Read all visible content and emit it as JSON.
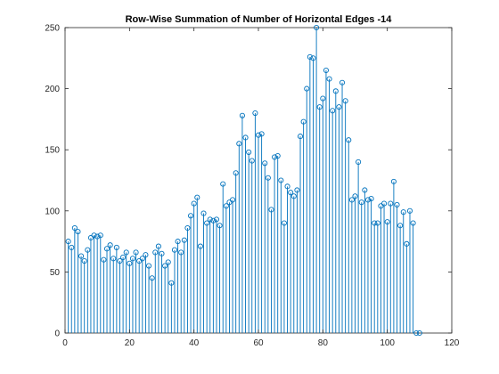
{
  "chart_data": {
    "type": "stem",
    "title": "Row-Wise Summation of Number of Horizontal Edges -14",
    "xlabel": "",
    "ylabel": "",
    "xlim": [
      0,
      120
    ],
    "ylim": [
      0,
      250
    ],
    "xticks": [
      0,
      20,
      40,
      60,
      80,
      100,
      120
    ],
    "yticks": [
      0,
      50,
      100,
      150,
      200,
      250
    ],
    "grid": false,
    "marker": "circle-open",
    "color": "#0072BD",
    "x": [
      1,
      2,
      3,
      4,
      5,
      6,
      7,
      8,
      9,
      10,
      11,
      12,
      13,
      14,
      15,
      16,
      17,
      18,
      19,
      20,
      21,
      22,
      23,
      24,
      25,
      26,
      27,
      28,
      29,
      30,
      31,
      32,
      33,
      34,
      35,
      36,
      37,
      38,
      39,
      40,
      41,
      42,
      43,
      44,
      45,
      46,
      47,
      48,
      49,
      50,
      51,
      52,
      53,
      54,
      55,
      56,
      57,
      58,
      59,
      60,
      61,
      62,
      63,
      64,
      65,
      66,
      67,
      68,
      69,
      70,
      71,
      72,
      73,
      74,
      75,
      76,
      77,
      78,
      79,
      80,
      81,
      82,
      83,
      84,
      85,
      86,
      87,
      88,
      89,
      90,
      91,
      92,
      93,
      94,
      95,
      96,
      97,
      98,
      99,
      100,
      101,
      102,
      103,
      104,
      105,
      106,
      107,
      108,
      109,
      110
    ],
    "values": [
      75,
      70,
      86,
      83,
      63,
      59,
      68,
      78,
      80,
      79,
      80,
      60,
      69,
      72,
      61,
      70,
      59,
      62,
      66,
      57,
      61,
      66,
      59,
      61,
      64,
      55,
      45,
      66,
      71,
      65,
      55,
      58,
      41,
      68,
      75,
      66,
      76,
      86,
      96,
      106,
      111,
      71,
      98,
      90,
      93,
      92,
      93,
      88,
      122,
      104,
      107,
      109,
      131,
      155,
      178,
      160,
      148,
      141,
      180,
      162,
      163,
      139,
      127,
      101,
      144,
      145,
      125,
      90,
      120,
      115,
      112,
      117,
      161,
      173,
      200,
      226,
      225,
      250,
      185,
      192,
      215,
      208,
      182,
      198,
      185,
      205,
      190,
      158,
      109,
      112,
      140,
      107,
      117,
      109,
      110,
      90,
      90,
      104,
      106,
      91,
      106,
      124,
      105,
      88,
      99,
      73,
      100,
      90,
      0,
      0
    ]
  }
}
